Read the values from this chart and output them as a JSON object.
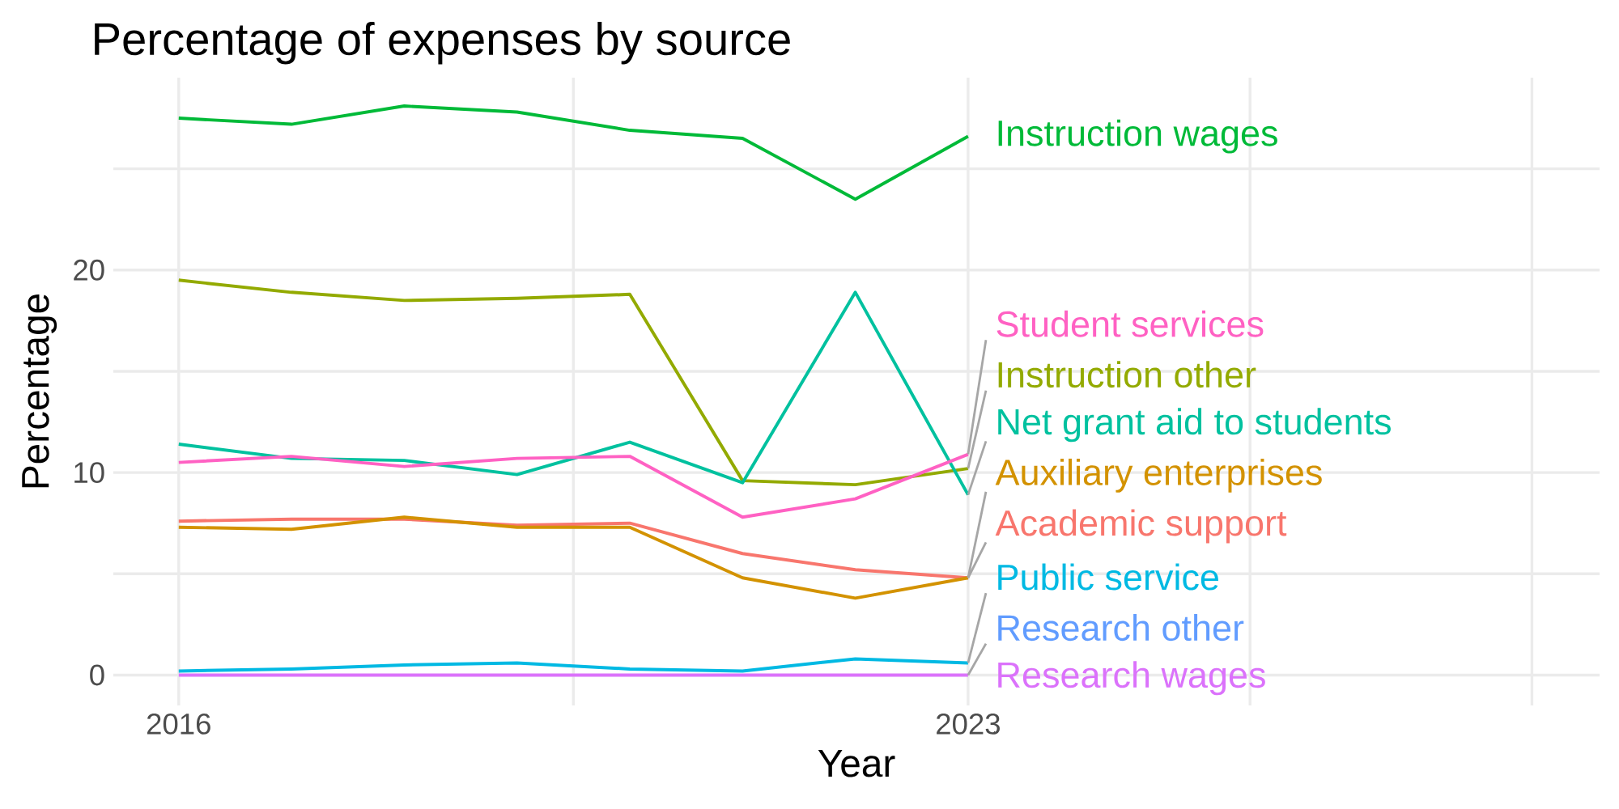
{
  "chart_data": {
    "type": "line",
    "title": "Percentage of expenses by source",
    "xlabel": "Year",
    "ylabel": "Percentage",
    "x": [
      2016,
      2017,
      2018,
      2019,
      2020,
      2021,
      2022,
      2023
    ],
    "series": [
      {
        "name": "Academic support",
        "color": "#F8766D",
        "values": [
          7.6,
          7.7,
          7.7,
          7.4,
          7.5,
          6.0,
          5.2,
          4.8
        ]
      },
      {
        "name": "Auxiliary enterprises",
        "color": "#D39200",
        "values": [
          7.3,
          7.2,
          7.8,
          7.3,
          7.3,
          4.8,
          3.8,
          4.8
        ]
      },
      {
        "name": "Instruction other",
        "color": "#93AA00",
        "values": [
          19.5,
          18.9,
          18.5,
          18.6,
          18.8,
          9.6,
          9.4,
          10.2
        ]
      },
      {
        "name": "Instruction wages",
        "color": "#00BA38",
        "values": [
          27.5,
          27.2,
          28.1,
          27.8,
          26.9,
          26.5,
          23.5,
          26.6
        ]
      },
      {
        "name": "Net grant aid to students",
        "color": "#00C19F",
        "values": [
          11.4,
          10.7,
          10.6,
          9.9,
          11.5,
          9.5,
          18.9,
          8.9
        ]
      },
      {
        "name": "Public service",
        "color": "#00B9E3",
        "values": [
          0.2,
          0.3,
          0.5,
          0.6,
          0.3,
          0.2,
          0.8,
          0.6
        ]
      },
      {
        "name": "Research other",
        "color": "#619CFF",
        "values": [
          null,
          null,
          null,
          null,
          null,
          null,
          null,
          null
        ]
      },
      {
        "name": "Research wages",
        "color": "#DB72FB",
        "values": [
          0,
          0,
          0,
          0,
          0,
          0,
          0,
          0
        ]
      },
      {
        "name": "Student services",
        "color": "#FF61C3",
        "values": [
          10.5,
          10.8,
          10.3,
          10.7,
          10.8,
          7.8,
          8.7,
          10.9
        ]
      }
    ],
    "xlim": [
      2015.42,
      2028.6
    ],
    "ylim": [
      -1.5,
      29.5
    ],
    "xticks": [
      2016,
      {
        "value": 2019.5,
        "label": null
      },
      2023,
      {
        "value": 2025.5,
        "label": null
      },
      {
        "value": 2028,
        "label": null
      }
    ],
    "yticks": [
      0,
      {
        "value": 5,
        "label": null
      },
      10,
      {
        "value": 15,
        "label": null
      },
      20,
      {
        "value": 25,
        "label": null
      }
    ],
    "grid": true,
    "legend": false,
    "marker": "none",
    "line_style": "solid"
  }
}
